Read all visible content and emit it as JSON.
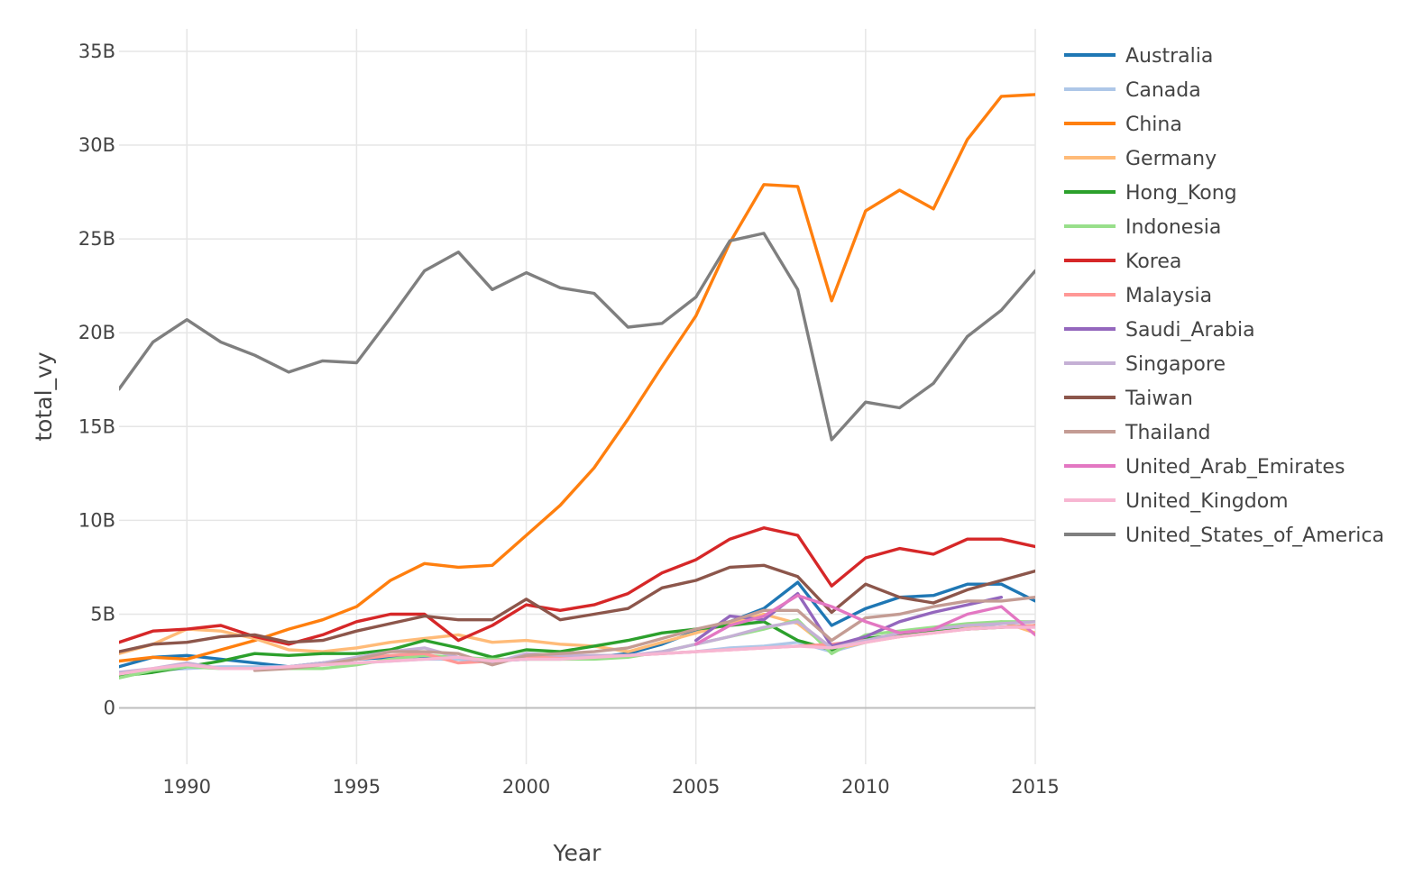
{
  "chart_data": {
    "type": "line",
    "xlabel": "Year",
    "ylabel": "total_vy",
    "xlim": [
      1988,
      2015
    ],
    "ylim": [
      -3,
      36.2
    ],
    "x_ticks": [
      1990,
      1995,
      2000,
      2005,
      2010,
      2015
    ],
    "y_ticks": [
      0,
      5,
      10,
      15,
      20,
      25,
      30,
      35
    ],
    "y_tick_labels": [
      "0",
      "5B",
      "10B",
      "15B",
      "20B",
      "25B",
      "30B",
      "35B"
    ],
    "y_unit": "billions",
    "grid": true,
    "legend_position": "right",
    "series": [
      {
        "name": "Australia",
        "color": "#1f77b4",
        "start": 1988,
        "values": [
          2.2,
          2.7,
          2.8,
          2.6,
          2.4,
          2.2,
          2.4,
          2.6,
          2.7,
          2.7,
          2.6,
          2.5,
          2.6,
          2.7,
          2.7,
          2.9,
          3.4,
          4.1,
          4.6,
          5.3,
          6.7,
          4.4,
          5.3,
          5.9,
          6.0,
          6.6,
          6.6,
          5.7
        ]
      },
      {
        "name": "Canada",
        "color": "#aec7e8",
        "start": 1988,
        "values": [
          1.9,
          2.0,
          2.1,
          2.2,
          2.2,
          2.2,
          2.3,
          2.4,
          2.5,
          2.6,
          2.6,
          2.5,
          2.6,
          2.6,
          2.7,
          2.8,
          2.9,
          3.0,
          3.2,
          3.3,
          3.5,
          3.0,
          3.5,
          3.9,
          4.0,
          4.3,
          4.5,
          4.6
        ]
      },
      {
        "name": "China",
        "color": "#ff7f0e",
        "start": 1988,
        "values": [
          2.5,
          2.7,
          2.6,
          3.1,
          3.6,
          4.2,
          4.7,
          5.4,
          6.8,
          7.7,
          7.5,
          7.6,
          9.2,
          10.8,
          12.8,
          15.4,
          18.2,
          20.9,
          24.8,
          27.9,
          27.8,
          21.7,
          26.5,
          27.6,
          26.6,
          30.3,
          32.6,
          32.7
        ]
      },
      {
        "name": "Germany",
        "color": "#ffbb78",
        "start": 1988,
        "values": [
          2.9,
          3.4,
          4.2,
          4.1,
          3.7,
          3.1,
          3.0,
          3.2,
          3.5,
          3.7,
          3.9,
          3.5,
          3.6,
          3.4,
          3.3,
          3.0,
          3.5,
          4.0,
          4.5,
          5.0,
          4.5,
          3.1,
          3.5,
          3.8,
          4.1,
          4.3,
          4.6,
          4.0
        ]
      },
      {
        "name": "Hong_Kong",
        "color": "#2ca02c",
        "start": 1988,
        "values": [
          1.7,
          1.9,
          2.2,
          2.5,
          2.9,
          2.8,
          2.9,
          2.9,
          3.1,
          3.6,
          3.2,
          2.7,
          3.1,
          3.0,
          3.3,
          3.6,
          4.0,
          4.2,
          4.4,
          4.6,
          3.6,
          3.1,
          3.7,
          3.9,
          4.1,
          4.2,
          4.3,
          4.4
        ]
      },
      {
        "name": "Indonesia",
        "color": "#98df8a",
        "start": 1988,
        "values": [
          1.6,
          2.0,
          2.2,
          2.1,
          2.1,
          2.1,
          2.1,
          2.3,
          2.6,
          2.8,
          2.7,
          2.6,
          2.6,
          2.6,
          2.6,
          2.7,
          3.0,
          3.4,
          3.8,
          4.2,
          4.7,
          2.9,
          3.9,
          4.1,
          4.3,
          4.5,
          4.6,
          4.6
        ]
      },
      {
        "name": "Korea",
        "color": "#d62728",
        "start": 1988,
        "values": [
          3.5,
          4.1,
          4.2,
          4.4,
          3.8,
          3.4,
          3.9,
          4.6,
          5.0,
          5.0,
          3.6,
          4.4,
          5.5,
          5.2,
          5.5,
          6.1,
          7.2,
          7.9,
          9.0,
          9.6,
          9.2,
          6.5,
          8.0,
          8.5,
          8.2,
          9.0,
          9.0,
          8.6
        ]
      },
      {
        "name": "Malaysia",
        "color": "#ff9896",
        "start": 1988,
        "values": [
          null,
          null,
          null,
          null,
          null,
          null,
          null,
          2.6,
          2.8,
          2.9,
          2.4,
          2.5,
          2.7,
          2.7,
          2.8,
          2.8,
          2.9,
          3.0,
          3.1,
          3.2,
          3.3,
          3.4,
          3.6,
          3.8,
          4.0,
          4.2,
          4.3,
          4.4
        ]
      },
      {
        "name": "Saudi_Arabia",
        "color": "#9467bd",
        "start": 1988,
        "values": [
          null,
          null,
          null,
          null,
          null,
          null,
          null,
          null,
          null,
          null,
          null,
          null,
          null,
          null,
          null,
          null,
          null,
          3.6,
          4.9,
          4.7,
          6.1,
          3.3,
          3.8,
          4.6,
          5.1,
          5.5,
          5.9,
          null
        ]
      },
      {
        "name": "Singapore",
        "color": "#c5b0d5",
        "start": 1988,
        "values": [
          1.9,
          2.1,
          2.4,
          2.1,
          2.1,
          2.2,
          2.4,
          2.7,
          3.0,
          3.2,
          2.7,
          2.4,
          2.9,
          2.8,
          2.8,
          2.8,
          3.0,
          3.4,
          3.8,
          4.3,
          4.6,
          3.2,
          3.6,
          4.0,
          4.2,
          4.4,
          4.5,
          4.6
        ]
      },
      {
        "name": "Taiwan",
        "color": "#8c564b",
        "start": 1988,
        "values": [
          3.0,
          3.4,
          3.5,
          3.8,
          3.9,
          3.5,
          3.6,
          4.1,
          4.5,
          4.9,
          4.7,
          4.7,
          5.8,
          4.7,
          5.0,
          5.3,
          6.4,
          6.8,
          7.5,
          7.6,
          7.0,
          5.1,
          6.6,
          5.9,
          5.6,
          6.3,
          6.8,
          7.3
        ]
      },
      {
        "name": "Thailand",
        "color": "#c49c94",
        "start": 1988,
        "values": [
          null,
          null,
          null,
          null,
          2.0,
          2.1,
          2.3,
          2.6,
          3.0,
          3.0,
          2.9,
          2.3,
          2.8,
          2.9,
          3.0,
          3.2,
          3.7,
          4.2,
          4.6,
          5.2,
          5.2,
          3.6,
          4.8,
          5.0,
          5.4,
          5.7,
          5.7,
          5.9
        ]
      },
      {
        "name": "United_Arab_Emirates",
        "color": "#e377c2",
        "start": 1988,
        "values": [
          null,
          null,
          null,
          null,
          null,
          null,
          null,
          null,
          null,
          null,
          null,
          null,
          null,
          null,
          null,
          null,
          null,
          3.4,
          4.4,
          4.9,
          6.0,
          5.4,
          4.6,
          4.0,
          4.2,
          5.0,
          5.4,
          3.9
        ]
      },
      {
        "name": "United_Kingdom",
        "color": "#f7b6d2",
        "start": 1988,
        "values": [
          1.8,
          2.1,
          2.3,
          2.1,
          2.1,
          2.2,
          2.3,
          2.4,
          2.5,
          2.6,
          2.7,
          2.5,
          2.6,
          2.6,
          2.7,
          2.8,
          2.9,
          3.0,
          3.1,
          3.2,
          3.3,
          3.2,
          3.5,
          3.8,
          4.0,
          4.2,
          4.3,
          4.3
        ]
      },
      {
        "name": "United_States_of_America",
        "color": "#7f7f7f",
        "start": 1988,
        "values": [
          17.0,
          19.5,
          20.7,
          19.5,
          18.8,
          17.9,
          18.5,
          18.4,
          20.8,
          23.3,
          24.3,
          22.3,
          23.2,
          22.4,
          22.1,
          20.3,
          20.5,
          21.9,
          24.9,
          25.3,
          22.3,
          14.3,
          16.3,
          16.0,
          17.3,
          19.8,
          21.2,
          23.3
        ]
      }
    ]
  }
}
